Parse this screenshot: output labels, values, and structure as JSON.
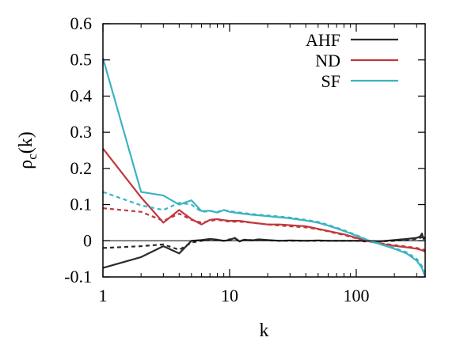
{
  "chart_data": {
    "type": "line",
    "x_scale": "log",
    "xlim": [
      1,
      350
    ],
    "ylim": [
      -0.1,
      0.6
    ],
    "xlabel": "k",
    "ylabel": "ρc(k)",
    "ylabel_main": "ρ",
    "ylabel_sub": "c",
    "ylabel_suffix": "(k)",
    "x_ticks": [
      1,
      10,
      100
    ],
    "x_tick_labels": [
      "1",
      "10",
      "100"
    ],
    "y_ticks": [
      -0.1,
      0,
      0.1,
      0.2,
      0.3,
      0.4,
      0.5,
      0.6
    ],
    "y_tick_labels": [
      "-0.1",
      "0",
      "0.1",
      "0.2",
      "0.3",
      "0.4",
      "0.5",
      "0.6"
    ],
    "zero_line": true,
    "grid": false,
    "legend_position": "top-right",
    "series": [
      {
        "name": "AHF",
        "color": "#2b2b2b",
        "style": "solid",
        "x": [
          1,
          2,
          3,
          4,
          5,
          6,
          7,
          8,
          9,
          10,
          11,
          12,
          13,
          15,
          17,
          20,
          25,
          30,
          40,
          50,
          60,
          70,
          80,
          100,
          120,
          150,
          200,
          250,
          300,
          320,
          330,
          340,
          350
        ],
        "y": [
          -0.075,
          -0.045,
          -0.015,
          -0.035,
          0.0,
          0.002,
          0.005,
          0.003,
          0.0,
          0.002,
          0.008,
          -0.002,
          0.003,
          0.001,
          0.004,
          0.002,
          0.0,
          0.001,
          0.0,
          0.001,
          0.0,
          0.0,
          0.0,
          0.0,
          0.0,
          -0.002,
          0.002,
          0.005,
          0.008,
          0.012,
          0.02,
          0.005,
          0.01
        ]
      },
      {
        "name": "",
        "color": "#2b2b2b",
        "style": "dashed",
        "x": [
          1,
          2,
          3,
          4,
          5,
          6,
          7,
          8,
          9,
          10,
          11,
          12,
          13,
          15,
          17,
          20,
          25,
          30,
          40,
          50,
          60,
          70,
          80,
          100,
          120,
          150,
          200,
          250,
          300,
          330,
          350
        ],
        "y": [
          -0.02,
          -0.015,
          -0.01,
          -0.025,
          -0.005,
          0.0,
          0.004,
          0.002,
          0.0,
          0.004,
          0.006,
          0.0,
          0.002,
          0.002,
          0.003,
          0.001,
          0.0,
          0.0,
          0.0,
          0.0,
          0.0,
          0.0,
          0.0,
          0.0,
          -0.002,
          -0.002,
          0.0,
          0.003,
          0.005,
          0.01,
          0.005
        ]
      },
      {
        "name": "ND",
        "color": "#c0383d",
        "style": "solid",
        "x": [
          1,
          2,
          3,
          4,
          5,
          6,
          7,
          8,
          9,
          10,
          12,
          15,
          20,
          25,
          30,
          40,
          50,
          60,
          70,
          80,
          100,
          120,
          150,
          200,
          250,
          300,
          330,
          350
        ],
        "y": [
          0.255,
          0.12,
          0.05,
          0.085,
          0.06,
          0.045,
          0.058,
          0.06,
          0.057,
          0.055,
          0.055,
          0.05,
          0.045,
          0.045,
          0.043,
          0.04,
          0.033,
          0.027,
          0.022,
          0.018,
          0.008,
          0.0,
          -0.007,
          -0.014,
          -0.018,
          -0.022,
          -0.026,
          -0.03
        ]
      },
      {
        "name": "",
        "color": "#c0383d",
        "style": "dashed",
        "x": [
          1,
          2,
          3,
          4,
          5,
          6,
          7,
          8,
          9,
          10,
          12,
          15,
          20,
          25,
          30,
          40,
          50,
          60,
          70,
          80,
          100,
          120,
          150,
          200,
          250,
          300,
          330,
          350
        ],
        "y": [
          0.09,
          0.08,
          0.055,
          0.075,
          0.058,
          0.05,
          0.055,
          0.058,
          0.055,
          0.053,
          0.053,
          0.05,
          0.045,
          0.042,
          0.04,
          0.037,
          0.032,
          0.026,
          0.02,
          0.016,
          0.007,
          0.0,
          -0.006,
          -0.012,
          -0.016,
          -0.02,
          -0.023,
          -0.026
        ]
      },
      {
        "name": "SF",
        "color": "#3bb3c3",
        "style": "solid",
        "x": [
          1,
          2,
          3,
          4,
          5,
          6,
          7,
          8,
          9,
          10,
          12,
          15,
          20,
          25,
          30,
          40,
          50,
          60,
          70,
          80,
          100,
          120,
          150,
          200,
          250,
          300,
          330,
          350
        ],
        "y": [
          0.505,
          0.135,
          0.125,
          0.1,
          0.112,
          0.082,
          0.083,
          0.078,
          0.085,
          0.08,
          0.076,
          0.072,
          0.068,
          0.065,
          0.062,
          0.056,
          0.05,
          0.042,
          0.034,
          0.027,
          0.014,
          0.003,
          -0.008,
          -0.022,
          -0.035,
          -0.055,
          -0.075,
          -0.1
        ]
      },
      {
        "name": "",
        "color": "#3bb3c3",
        "style": "dashed",
        "x": [
          1,
          2,
          3,
          4,
          5,
          6,
          7,
          8,
          9,
          10,
          12,
          15,
          20,
          25,
          30,
          40,
          50,
          60,
          70,
          80,
          100,
          120,
          150,
          200,
          250,
          300,
          330,
          350
        ],
        "y": [
          0.135,
          0.098,
          0.085,
          0.105,
          0.1,
          0.08,
          0.082,
          0.08,
          0.085,
          0.082,
          0.078,
          0.074,
          0.07,
          0.067,
          0.064,
          0.058,
          0.052,
          0.044,
          0.036,
          0.029,
          0.016,
          0.004,
          -0.007,
          -0.02,
          -0.032,
          -0.05,
          -0.07,
          -0.085
        ]
      }
    ]
  }
}
